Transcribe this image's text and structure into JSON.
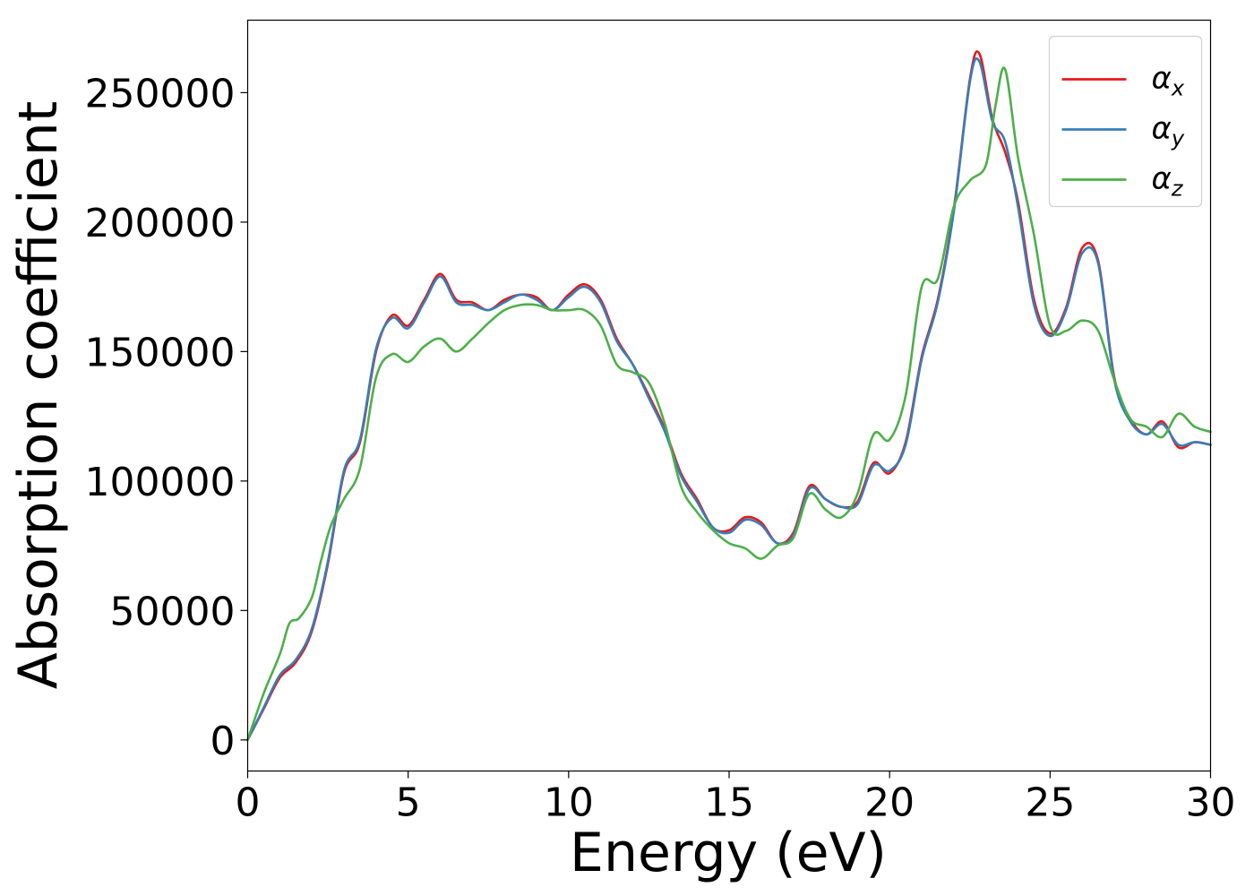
{
  "chart_data": {
    "type": "line",
    "title": "",
    "xlabel": "Energy (eV)",
    "ylabel": "Absorption coefficient",
    "xlim": [
      0,
      30
    ],
    "ylim": [
      -12000,
      278000
    ],
    "x_ticks": [
      0,
      5,
      10,
      15,
      20,
      25,
      30
    ],
    "y_ticks": [
      0,
      50000,
      100000,
      150000,
      200000,
      250000
    ],
    "grid": false,
    "legend_position": "top-right",
    "legend": [
      {
        "symbol": "α",
        "subscript": "x",
        "color": "#e41a1c"
      },
      {
        "symbol": "α",
        "subscript": "y",
        "color": "#377eb8"
      },
      {
        "symbol": "α",
        "subscript": "z",
        "color": "#4daf4a"
      }
    ],
    "series": [
      {
        "name": "α_x",
        "color": "#e41a1c",
        "x": [
          0,
          0.5,
          1.0,
          1.5,
          2.0,
          2.5,
          3.0,
          3.5,
          4.0,
          4.5,
          5.0,
          5.5,
          6.0,
          6.5,
          7.0,
          7.5,
          8.0,
          8.5,
          9.0,
          9.5,
          10.0,
          10.5,
          11.0,
          11.5,
          12.0,
          12.5,
          13.0,
          13.5,
          14.0,
          14.5,
          15.0,
          15.5,
          16.0,
          16.5,
          17.0,
          17.5,
          18.0,
          18.5,
          19.0,
          19.5,
          20.0,
          20.5,
          21.0,
          21.5,
          22.0,
          22.5,
          22.8,
          23.2,
          23.6,
          24.0,
          24.5,
          25.0,
          25.5,
          26.0,
          26.5,
          27.0,
          27.5,
          28.0,
          28.5,
          29.0,
          29.5,
          30.0
        ],
        "y": [
          0,
          12000,
          24000,
          30000,
          42000,
          68000,
          103000,
          115000,
          150000,
          164000,
          160000,
          170000,
          180000,
          170000,
          169000,
          166000,
          170000,
          172000,
          171000,
          166000,
          172000,
          176000,
          170000,
          155000,
          145000,
          133000,
          120000,
          103000,
          93000,
          82000,
          81000,
          86000,
          84000,
          76000,
          80000,
          98000,
          93000,
          90000,
          92000,
          107000,
          103000,
          115000,
          148000,
          170000,
          205000,
          255000,
          265000,
          240000,
          227000,
          208000,
          170000,
          157000,
          167000,
          190000,
          185000,
          140000,
          124000,
          118000,
          123000,
          113000,
          115000,
          114000
        ]
      },
      {
        "name": "α_y",
        "color": "#377eb8",
        "x": [
          0,
          0.5,
          1.0,
          1.5,
          2.0,
          2.5,
          3.0,
          3.5,
          4.0,
          4.5,
          5.0,
          5.5,
          6.0,
          6.5,
          7.0,
          7.5,
          8.0,
          8.5,
          9.0,
          9.5,
          10.0,
          10.5,
          11.0,
          11.5,
          12.0,
          12.5,
          13.0,
          13.5,
          14.0,
          14.5,
          15.0,
          15.5,
          16.0,
          16.5,
          17.0,
          17.5,
          18.0,
          18.5,
          19.0,
          19.5,
          20.0,
          20.5,
          21.0,
          21.5,
          22.0,
          22.5,
          22.8,
          23.2,
          23.6,
          24.0,
          24.5,
          25.0,
          25.5,
          26.0,
          26.5,
          27.0,
          27.5,
          28.0,
          28.5,
          29.0,
          29.5,
          30.0
        ],
        "y": [
          0,
          12500,
          25000,
          31000,
          43000,
          69000,
          104000,
          116000,
          151000,
          163000,
          159000,
          169000,
          179000,
          169000,
          168000,
          166000,
          169000,
          172000,
          170000,
          166000,
          171000,
          175000,
          169000,
          154000,
          145000,
          132000,
          119000,
          102000,
          92000,
          82000,
          80000,
          85000,
          83000,
          76000,
          79000,
          97000,
          93000,
          90000,
          91000,
          106000,
          104000,
          114000,
          147000,
          169000,
          204000,
          254000,
          262000,
          239000,
          231000,
          206000,
          168000,
          156000,
          166000,
          188000,
          184000,
          139000,
          123000,
          118000,
          122000,
          114000,
          115000,
          114000
        ]
      },
      {
        "name": "α_z",
        "color": "#4daf4a",
        "x": [
          0,
          0.5,
          1.0,
          1.3,
          1.6,
          2.0,
          2.3,
          2.6,
          3.0,
          3.5,
          4.0,
          4.5,
          5.0,
          5.5,
          6.0,
          6.5,
          7.0,
          7.5,
          8.0,
          8.5,
          9.0,
          9.5,
          10.0,
          10.5,
          11.0,
          11.5,
          12.0,
          12.5,
          13.0,
          13.5,
          14.0,
          14.5,
          15.0,
          15.5,
          16.0,
          16.5,
          17.0,
          17.5,
          18.0,
          18.5,
          19.0,
          19.5,
          20.0,
          20.5,
          21.0,
          21.5,
          22.0,
          22.5,
          23.0,
          23.3,
          23.6,
          24.0,
          24.5,
          25.0,
          25.5,
          26.0,
          26.5,
          27.0,
          27.5,
          28.0,
          28.5,
          29.0,
          29.5,
          30.0
        ],
        "y": [
          0,
          18000,
          33000,
          45000,
          47000,
          55000,
          70000,
          83000,
          93000,
          105000,
          140000,
          149000,
          146000,
          152000,
          155000,
          150000,
          155000,
          161000,
          166000,
          168000,
          168000,
          166000,
          166000,
          166000,
          160000,
          145000,
          142000,
          138000,
          122000,
          98000,
          88000,
          81000,
          76000,
          74000,
          70000,
          75000,
          78000,
          95000,
          89000,
          86000,
          95000,
          118000,
          116000,
          133000,
          175000,
          178000,
          206000,
          216000,
          222000,
          245000,
          259000,
          225000,
          195000,
          160000,
          158000,
          162000,
          158000,
          139000,
          124000,
          121000,
          117000,
          126000,
          121000,
          119000
        ]
      }
    ]
  }
}
